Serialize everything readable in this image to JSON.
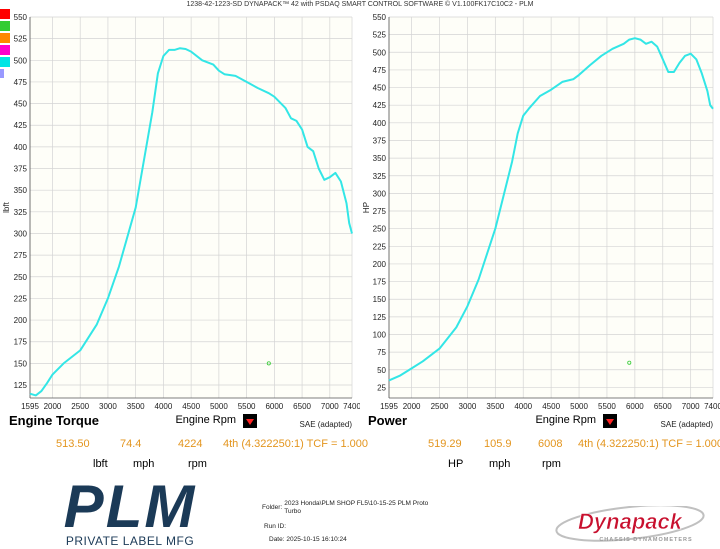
{
  "header": {
    "title": "1238-42-1223-SD DYNAPACK™ 42 with PSDAQ SMART CONTROL SOFTWARE © V1.100FK17C10C2 - PLM"
  },
  "swatches": [
    "#ff0000",
    "#33cc33",
    "#ff8800",
    "#ff00cc",
    "#00e5e5",
    "#9999ff"
  ],
  "chart_data": [
    {
      "type": "line",
      "title": "Engine Torque",
      "xlabel": "Engine Rpm",
      "ylabel": "lbft",
      "note": "SAE (adapted)",
      "xlim": [
        1595,
        7400
      ],
      "ylim": [
        110,
        550
      ],
      "x_ticks": [
        1595,
        2000,
        2500,
        3000,
        3500,
        4000,
        4500,
        5000,
        5500,
        6000,
        6500,
        7000,
        7400
      ],
      "y_ticks": [
        125,
        150,
        175,
        200,
        225,
        250,
        275,
        300,
        325,
        350,
        375,
        400,
        425,
        450,
        475,
        500,
        525,
        550
      ],
      "grid": true,
      "line_color": "#33e6e6",
      "series": [
        {
          "x": [
            1595,
            1700,
            1800,
            1900,
            2000,
            2200,
            2500,
            2800,
            3000,
            3200,
            3500,
            3800,
            3900,
            4000,
            4100,
            4200,
            4300,
            4400,
            4500,
            4700,
            4900,
            5000,
            5100,
            5300,
            5500,
            5700,
            5900,
            6000,
            6200,
            6300,
            6400,
            6500,
            6600,
            6700,
            6800,
            6900,
            7000,
            7100,
            7200,
            7300,
            7350,
            7400
          ],
          "y": [
            115,
            113,
            118,
            127,
            137,
            150,
            165,
            195,
            225,
            262,
            330,
            440,
            485,
            505,
            512,
            512,
            514,
            513,
            510,
            500,
            495,
            488,
            484,
            482,
            475,
            468,
            462,
            458,
            445,
            433,
            430,
            420,
            400,
            395,
            375,
            362,
            365,
            370,
            360,
            335,
            312,
            300
          ]
        }
      ],
      "marker": {
        "x": 5900,
        "y": 150,
        "color": "#33cc33"
      },
      "readout": {
        "torque": "513.50",
        "speed": "74.4",
        "rpm": "4224",
        "gear": "4th (4.322250:1) TCF = 1.000"
      },
      "units": {
        "torque": "lbft",
        "speed": "mph",
        "rpm": "rpm"
      }
    },
    {
      "type": "line",
      "title": "Power",
      "xlabel": "Engine Rpm",
      "ylabel": "HP",
      "note": "SAE (adapted)",
      "xlim": [
        1595,
        7400
      ],
      "ylim": [
        10,
        550
      ],
      "x_ticks": [
        1595,
        2000,
        2500,
        3000,
        3500,
        4000,
        4500,
        5000,
        5500,
        6000,
        6500,
        7000,
        7400
      ],
      "y_ticks": [
        25,
        50,
        75,
        100,
        125,
        150,
        175,
        200,
        225,
        250,
        275,
        300,
        325,
        350,
        375,
        400,
        425,
        450,
        475,
        500,
        525,
        550
      ],
      "grid": true,
      "line_color": "#33e6e6",
      "series": [
        {
          "x": [
            1595,
            1800,
            2000,
            2200,
            2500,
            2800,
            3000,
            3200,
            3500,
            3800,
            3900,
            4000,
            4100,
            4300,
            4500,
            4700,
            4900,
            5000,
            5200,
            5400,
            5600,
            5800,
            5900,
            6000,
            6100,
            6200,
            6300,
            6400,
            6500,
            6600,
            6700,
            6800,
            6900,
            7000,
            7100,
            7200,
            7300,
            7350,
            7400
          ],
          "y": [
            35,
            42,
            52,
            62,
            80,
            110,
            140,
            178,
            250,
            345,
            385,
            410,
            420,
            438,
            447,
            458,
            462,
            468,
            482,
            495,
            505,
            512,
            518,
            520,
            518,
            512,
            515,
            508,
            490,
            472,
            472,
            485,
            495,
            498,
            490,
            470,
            445,
            425,
            420
          ]
        }
      ],
      "marker": {
        "x": 5900,
        "y": 60,
        "color": "#33cc33"
      },
      "readout": {
        "power": "519.29",
        "speed": "105.9",
        "rpm": "6008",
        "gear": "4th (4.322250:1) TCF = 1.000"
      },
      "units": {
        "power": "HP",
        "speed": "mph",
        "rpm": "rpm"
      }
    }
  ],
  "run_info": {
    "folder_label": "Folder:",
    "folder_value_line1": "2023 Honda\\PLM SHOP FL5\\10-15-25 PLM Proto",
    "folder_value_line2": "Turbo",
    "run_id_label": "Run ID:",
    "date_label": "Date:",
    "date_value": "2025-10-15 16:10:24"
  },
  "plm_logo": {
    "text": "PLM",
    "tagline": "PRIVATE LABEL MFG",
    "color": "#1b3a57"
  },
  "dynapack_logo": {
    "text": "Dynapack",
    "tagline": "CHASSIS DYNAMOMETERS",
    "color": "#c8102e"
  }
}
